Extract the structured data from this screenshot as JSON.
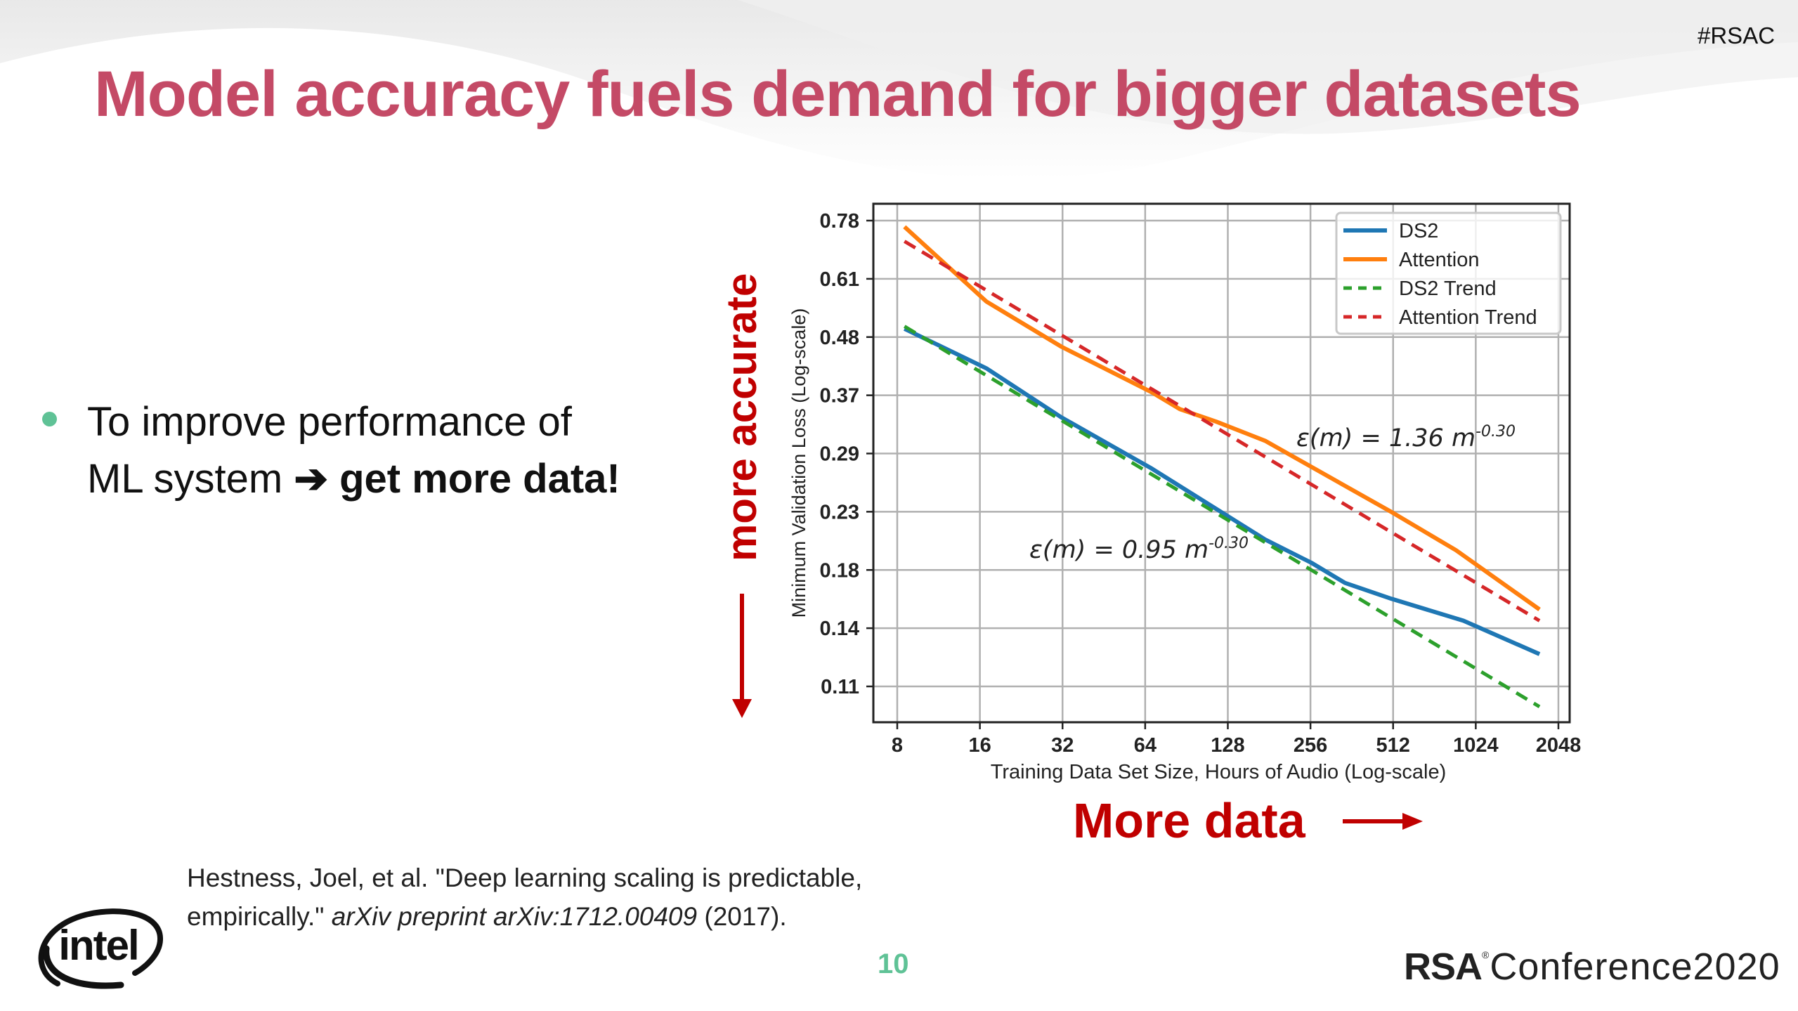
{
  "header": {
    "hashtag": "#RSAC",
    "title": "Model accuracy fuels demand for bigger datasets"
  },
  "bullet": {
    "text_normal": "To improve performance of ML system",
    "arrow": "➔",
    "text_bold": "get more data!"
  },
  "annotations": {
    "y_direction": "more accurate",
    "x_direction": "More data"
  },
  "citation": {
    "line1": "Hestness, Joel, et al. \"Deep learning scaling is predictable,",
    "line2_normal": "empirically.\"",
    "line2_italic": "arXiv preprint arXiv:1712.00409",
    "line2_tail": "(2017)."
  },
  "footer": {
    "page_number": "10",
    "logo_left": "intel",
    "logo_right_bold": "RSA",
    "logo_right_reg": "®",
    "logo_right_text": "Conference2020"
  },
  "colors": {
    "title": "#C44A66",
    "accent_green": "#5FC296",
    "annotation_red": "#C00000",
    "ds2": "#1F77B4",
    "attention": "#FF7F0E",
    "ds2_trend": "#2CA02C",
    "attention_trend": "#D62728"
  },
  "chart_data": {
    "type": "line",
    "title": "",
    "xlabel": "Training Data Set Size, Hours of Audio (Log-scale)",
    "ylabel": "Minimum Validation Loss (Log-scale)",
    "xscale": "log2",
    "yscale": "log",
    "x_ticks": [
      8,
      16,
      32,
      64,
      128,
      256,
      512,
      1024,
      2048
    ],
    "y_ticks": [
      0.78,
      0.61,
      0.48,
      0.37,
      0.29,
      0.23,
      0.18,
      0.14,
      0.11
    ],
    "xlim": [
      7.4,
      2250
    ],
    "ylim": [
      0.094,
      0.82
    ],
    "grid": true,
    "legend_position": "upper right",
    "legend": [
      "DS2",
      "Attention",
      "DS2 Trend",
      "Attention Trend"
    ],
    "series": [
      {
        "name": "DS2",
        "style": "solid",
        "color": "#1F77B4",
        "x": [
          8.5,
          16.9,
          31.7,
          67.6,
          175,
          258,
          342,
          505,
          924,
          1748
        ],
        "y": [
          0.495,
          0.419,
          0.341,
          0.275,
          0.204,
          0.185,
          0.17,
          0.159,
          0.145,
          0.126
        ]
      },
      {
        "name": "Attention",
        "style": "solid",
        "color": "#FF7F0E",
        "x": [
          8.5,
          16.9,
          31.7,
          67.6,
          85.6,
          116,
          175,
          505,
          868,
          1748
        ],
        "y": [
          0.76,
          0.555,
          0.459,
          0.379,
          0.353,
          0.335,
          0.309,
          0.229,
          0.195,
          0.152
        ]
      },
      {
        "name": "DS2 Trend",
        "style": "dashed",
        "color": "#2CA02C",
        "equation": "0.95 * m^-0.30",
        "x": [
          8.5,
          1748
        ],
        "y": [
          0.5,
          0.101
        ]
      },
      {
        "name": "Attention Trend",
        "style": "dashed",
        "color": "#D62728",
        "equation": "1.36 * m^-0.30",
        "x": [
          8.5,
          1748
        ],
        "y": [
          0.715,
          0.145
        ]
      }
    ],
    "annotations": [
      {
        "text_prefix": "ε(m) = 1.36 m",
        "superscript": "-0.30",
        "near_series": "Attention Trend"
      },
      {
        "text_prefix": "ε(m) = 0.95 m",
        "superscript": "-0.30",
        "near_series": "DS2 Trend"
      }
    ]
  }
}
